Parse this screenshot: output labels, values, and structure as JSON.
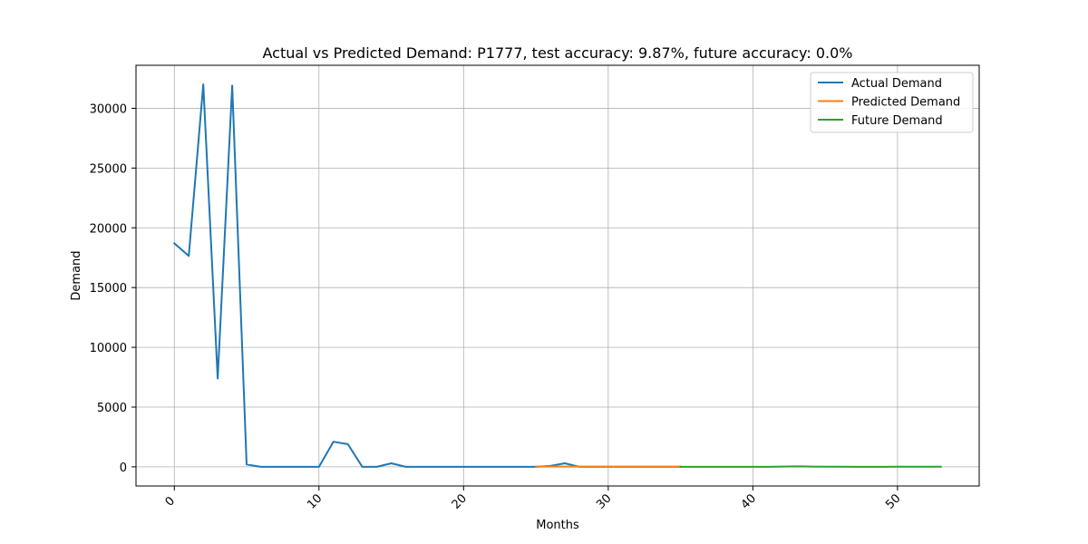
{
  "chart_data": {
    "type": "line",
    "title": "Actual vs Predicted Demand: P1777, test accuracy: 9.87%, future accuracy: 0.0%",
    "xlabel": "Months",
    "ylabel": "Demand",
    "xlim": [
      -2.65,
      55.65
    ],
    "ylim": [
      -1600,
      33600
    ],
    "xticks": [
      0,
      10,
      20,
      30,
      40,
      50
    ],
    "xtick_labels": [
      "0",
      "10",
      "20",
      "30",
      "40",
      "50"
    ],
    "yticks": [
      0,
      5000,
      10000,
      15000,
      20000,
      25000,
      30000
    ],
    "ytick_labels": [
      "0",
      "5000",
      "10000",
      "15000",
      "20000",
      "25000",
      "30000"
    ],
    "grid": true,
    "legend_position": "top-right",
    "series": [
      {
        "name": "Actual Demand",
        "color": "#1f77b4",
        "x": [
          0,
          1,
          2,
          3,
          4,
          5,
          6,
          7,
          8,
          9,
          10,
          11,
          12,
          13,
          14,
          15,
          16,
          17,
          18,
          19,
          20,
          21,
          22,
          23,
          24,
          25,
          26,
          27,
          28,
          29,
          30,
          31,
          32,
          33,
          34,
          35
        ],
        "values": [
          18700,
          17650,
          32000,
          7400,
          31900,
          200,
          0,
          0,
          0,
          0,
          0,
          2100,
          1900,
          0,
          0,
          300,
          0,
          0,
          0,
          0,
          0,
          0,
          0,
          0,
          0,
          0,
          80,
          300,
          0,
          0,
          0,
          0,
          0,
          0,
          0,
          0
        ]
      },
      {
        "name": "Predicted Demand",
        "color": "#ff7f0e",
        "x": [
          25,
          26,
          27,
          28,
          29,
          30,
          31,
          32,
          33,
          34,
          35
        ],
        "values": [
          20,
          20,
          20,
          20,
          20,
          20,
          20,
          20,
          20,
          20,
          20
        ]
      },
      {
        "name": "Future Demand",
        "color": "#2ca02c",
        "x": [
          35,
          36,
          37,
          38,
          39,
          40,
          41,
          42,
          43,
          44,
          45,
          46,
          47,
          48,
          49,
          50,
          51,
          52,
          53
        ],
        "values": [
          0,
          0,
          0,
          0,
          0,
          0,
          0,
          20,
          40,
          20,
          10,
          10,
          0,
          0,
          0,
          10,
          10,
          10,
          10
        ]
      }
    ]
  }
}
